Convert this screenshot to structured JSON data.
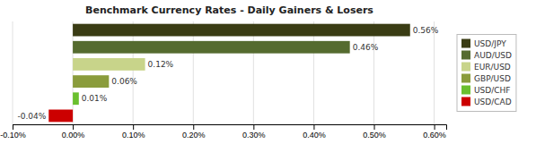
{
  "chart_data": {
    "type": "bar",
    "orientation": "horizontal",
    "title": "Benchmark Currency Rates - Daily Gainers & Losers",
    "categories": [
      "USD/JPY",
      "AUD/USD",
      "EUR/USD",
      "GBP/USD",
      "USD/CHF",
      "USD/CAD"
    ],
    "values": [
      0.56,
      0.46,
      0.12,
      0.06,
      0.01,
      -0.04
    ],
    "value_labels": [
      "0.56%",
      "0.46%",
      "0.12%",
      "0.06%",
      "0.01%",
      "-0.04%"
    ],
    "colors": [
      "#3a3c14",
      "#556b2f",
      "#c8d48a",
      "#8a9c3c",
      "#6abf2e",
      "#cc0000"
    ],
    "xlim": [
      -0.1,
      0.62
    ],
    "xticks": [
      {
        "value": -0.1,
        "label": "-0.10%"
      },
      {
        "value": 0.0,
        "label": "0.00%"
      },
      {
        "value": 0.1,
        "label": "0.10%"
      },
      {
        "value": 0.2,
        "label": "0.20%"
      },
      {
        "value": 0.3,
        "label": "0.30%"
      },
      {
        "value": 0.4,
        "label": "0.40%"
      },
      {
        "value": 0.5,
        "label": "0.50%"
      },
      {
        "value": 0.6,
        "label": "0.60%"
      }
    ],
    "grid": true,
    "data_labels": true,
    "legend": "right",
    "tick_labels": "x"
  }
}
